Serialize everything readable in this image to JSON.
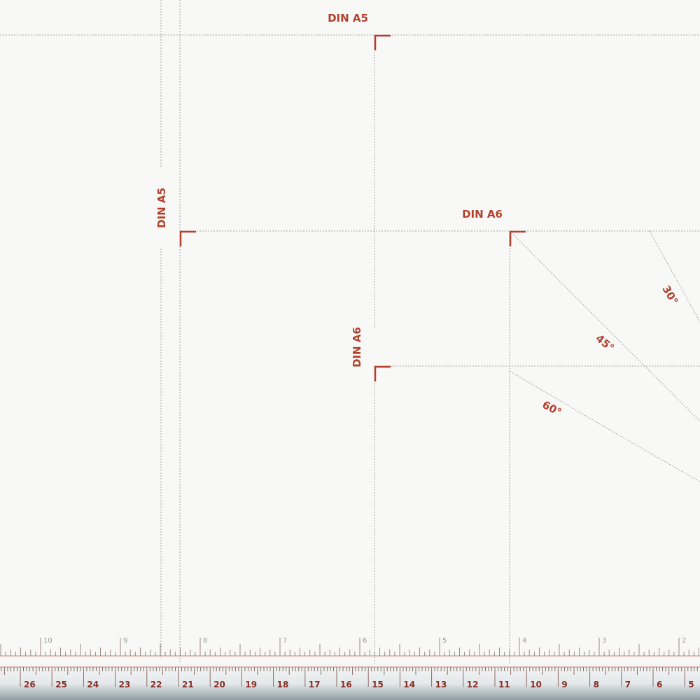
{
  "labels": {
    "a5_top": "DIN A5",
    "a5_side": "DIN A5",
    "a6_top": "DIN A6",
    "a6_side": "DIN A6",
    "angle_30": "30°",
    "angle_45": "45°",
    "angle_60": "60°"
  },
  "ruler": {
    "inch_labels": [
      "10",
      "9",
      "8",
      "7",
      "6",
      "5",
      "4",
      "3",
      "2"
    ],
    "cm_labels": [
      "26",
      "25",
      "24",
      "23",
      "22",
      "21",
      "20",
      "19",
      "18",
      "17",
      "16",
      "15",
      "14",
      "13",
      "12",
      "11",
      "10",
      "9",
      "8",
      "7",
      "6",
      "5"
    ]
  },
  "colors": {
    "accent": "#b4402c",
    "guide": "#a8a4a0",
    "background": "#f8f8f7"
  }
}
